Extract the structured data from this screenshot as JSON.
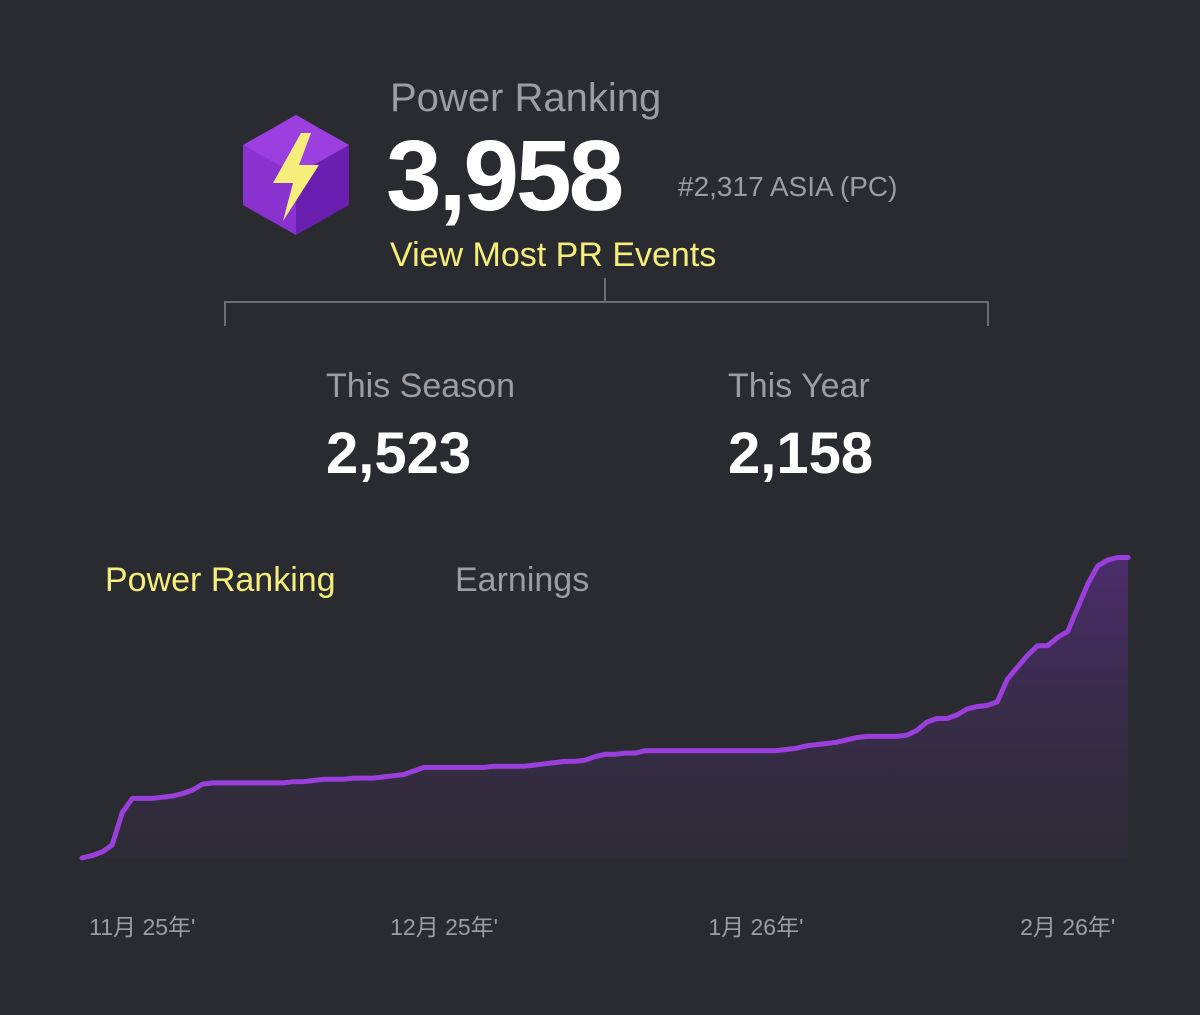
{
  "header": {
    "title": "Power Ranking",
    "value": "3,958",
    "rank": "#2,317 ASIA (PC)",
    "link": "View Most PR Events",
    "icon": "lightning-bolt-icon"
  },
  "stats": {
    "season_label": "This Season",
    "season_value": "2,523",
    "year_label": "This Year",
    "year_value": "2,158"
  },
  "tabs": {
    "power_ranking": "Power Ranking",
    "earnings": "Earnings",
    "active": "power_ranking"
  },
  "colors": {
    "background": "#2a2b30",
    "accent_yellow": "#f5ee7a",
    "line_purple": "#9b3fdc",
    "hex_purple_light": "#9b3fe0",
    "hex_purple_dark": "#6a1fb0",
    "muted_text": "#9c9ca2"
  },
  "chart_data": {
    "type": "area",
    "x_ticks": [
      "11月 25年'",
      "12月 25年'",
      "1月 26年'",
      "2月 26年'"
    ],
    "x_tick_index": [
      6,
      36,
      67,
      98
    ],
    "series": [
      {
        "values": [
          0,
          2,
          5,
          11,
          38,
          50,
          50,
          50,
          51,
          52,
          54,
          57,
          62,
          63,
          63,
          63,
          63,
          63,
          63,
          63,
          63,
          64,
          64,
          65,
          66,
          66,
          66,
          67,
          67,
          67,
          68,
          69,
          70,
          73,
          76,
          76,
          76,
          76,
          76,
          76,
          76,
          77,
          77,
          77,
          77,
          78,
          79,
          80,
          81,
          81,
          82,
          85,
          87,
          87,
          88,
          88,
          90,
          90,
          90,
          90,
          90,
          90,
          90,
          90,
          90,
          90,
          90,
          90,
          90,
          90,
          91,
          92,
          94,
          95,
          96,
          97,
          99,
          101,
          102,
          102,
          102,
          102,
          103,
          107,
          114,
          117,
          117,
          120,
          125,
          127,
          128,
          131,
          150,
          160,
          170,
          178,
          178,
          185,
          190,
          210,
          230,
          245,
          250,
          252,
          252
        ]
      }
    ],
    "ylim": [
      0,
      260
    ],
    "grid": false,
    "legend": "none"
  }
}
